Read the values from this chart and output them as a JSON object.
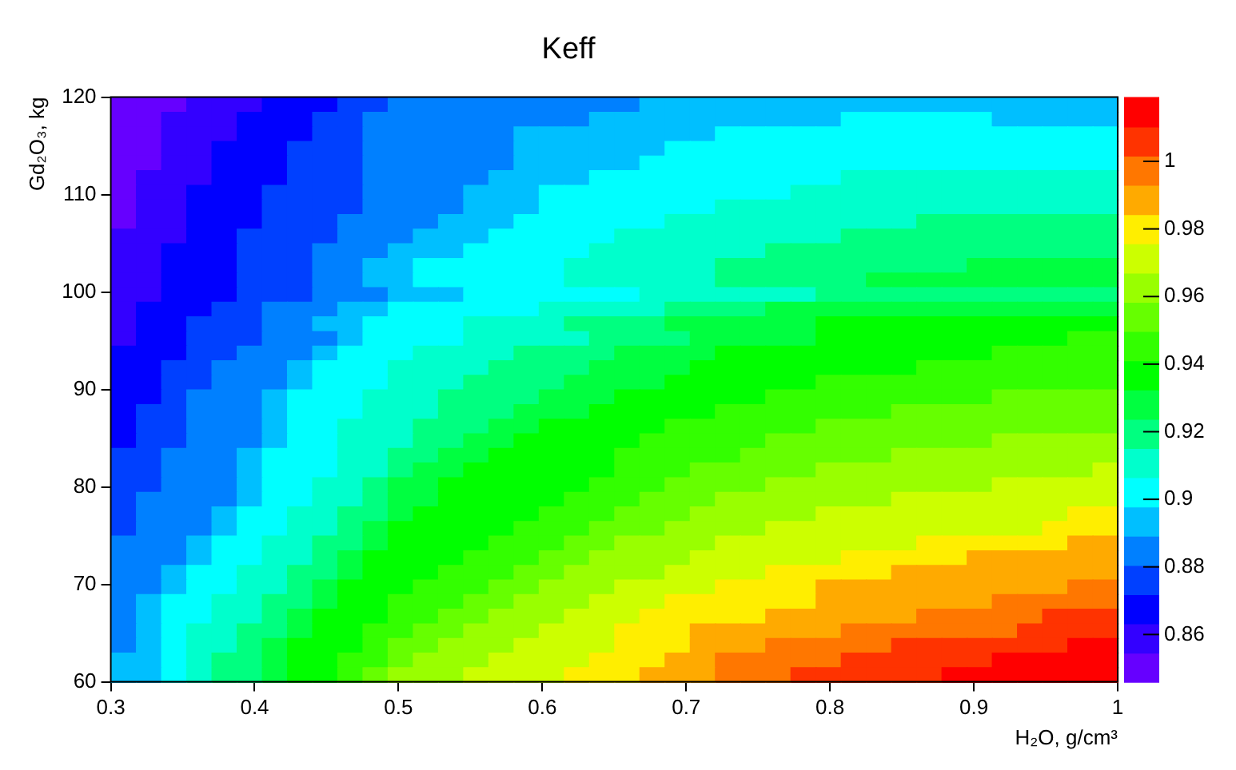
{
  "chart_data": {
    "type": "heatmap",
    "title": "Keff",
    "xlabel": "H₂O, g/cm³",
    "ylabel": "Gd₂O₃, kg",
    "xlim": [
      0.3,
      1
    ],
    "xticks": [
      0.3,
      0.4,
      0.5,
      0.6,
      0.7,
      0.8,
      0.9,
      1
    ],
    "ylim": [
      60,
      120
    ],
    "yticks": [
      60,
      70,
      80,
      90,
      100,
      110,
      120
    ],
    "clim": [
      0.846,
      1.019
    ],
    "cticks": [
      0.86,
      0.88,
      0.9,
      0.92,
      0.94,
      0.96,
      0.98,
      1
    ],
    "cells": [
      [
        0.85,
        0.85,
        0.85,
        0.859,
        0.859,
        0.859,
        0.868,
        0.868,
        0.868,
        0.876,
        0.876,
        0.885,
        0.885,
        0.885,
        0.885,
        0.885,
        0.885,
        0.885,
        0.885,
        0.885,
        0.885,
        0.893,
        0.893,
        0.893,
        0.893,
        0.893,
        0.893,
        0.893,
        0.893,
        0.893,
        0.893,
        0.893,
        0.893,
        0.893,
        0.893,
        0.893,
        0.893,
        0.893,
        0.893,
        0.893
      ],
      [
        0.85,
        0.85,
        0.859,
        0.859,
        0.859,
        0.868,
        0.868,
        0.868,
        0.876,
        0.876,
        0.885,
        0.885,
        0.885,
        0.885,
        0.885,
        0.885,
        0.885,
        0.885,
        0.885,
        0.893,
        0.893,
        0.893,
        0.893,
        0.893,
        0.893,
        0.893,
        0.893,
        0.893,
        0.893,
        0.902,
        0.902,
        0.902,
        0.902,
        0.902,
        0.902,
        0.893,
        0.893,
        0.893,
        0.893,
        0.893
      ],
      [
        0.85,
        0.85,
        0.859,
        0.859,
        0.859,
        0.868,
        0.868,
        0.868,
        0.876,
        0.876,
        0.885,
        0.885,
        0.885,
        0.885,
        0.885,
        0.885,
        0.893,
        0.893,
        0.893,
        0.893,
        0.893,
        0.893,
        0.893,
        0.893,
        0.902,
        0.902,
        0.902,
        0.902,
        0.902,
        0.902,
        0.902,
        0.902,
        0.902,
        0.902,
        0.902,
        0.902,
        0.902,
        0.902,
        0.902,
        0.902
      ],
      [
        0.85,
        0.85,
        0.859,
        0.859,
        0.868,
        0.868,
        0.868,
        0.876,
        0.876,
        0.876,
        0.885,
        0.885,
        0.885,
        0.885,
        0.885,
        0.885,
        0.893,
        0.893,
        0.893,
        0.893,
        0.893,
        0.893,
        0.902,
        0.902,
        0.902,
        0.902,
        0.902,
        0.902,
        0.902,
        0.902,
        0.902,
        0.902,
        0.902,
        0.902,
        0.902,
        0.902,
        0.902,
        0.902,
        0.902,
        0.902
      ],
      [
        0.85,
        0.85,
        0.859,
        0.859,
        0.868,
        0.868,
        0.868,
        0.876,
        0.876,
        0.876,
        0.885,
        0.885,
        0.885,
        0.885,
        0.885,
        0.885,
        0.893,
        0.893,
        0.893,
        0.893,
        0.893,
        0.902,
        0.902,
        0.902,
        0.902,
        0.902,
        0.902,
        0.902,
        0.902,
        0.902,
        0.902,
        0.902,
        0.902,
        0.902,
        0.902,
        0.902,
        0.902,
        0.902,
        0.902,
        0.902
      ],
      [
        0.85,
        0.859,
        0.859,
        0.859,
        0.868,
        0.868,
        0.868,
        0.876,
        0.876,
        0.876,
        0.885,
        0.885,
        0.885,
        0.885,
        0.885,
        0.893,
        0.893,
        0.893,
        0.893,
        0.902,
        0.902,
        0.902,
        0.902,
        0.902,
        0.902,
        0.902,
        0.902,
        0.902,
        0.902,
        0.911,
        0.911,
        0.911,
        0.911,
        0.911,
        0.911,
        0.911,
        0.911,
        0.911,
        0.911,
        0.911
      ],
      [
        0.85,
        0.859,
        0.859,
        0.868,
        0.868,
        0.868,
        0.876,
        0.876,
        0.876,
        0.876,
        0.885,
        0.885,
        0.885,
        0.885,
        0.893,
        0.893,
        0.893,
        0.902,
        0.902,
        0.902,
        0.902,
        0.902,
        0.902,
        0.902,
        0.902,
        0.902,
        0.902,
        0.911,
        0.911,
        0.911,
        0.911,
        0.911,
        0.911,
        0.911,
        0.911,
        0.911,
        0.911,
        0.911,
        0.911,
        0.911
      ],
      [
        0.85,
        0.859,
        0.859,
        0.868,
        0.868,
        0.868,
        0.876,
        0.876,
        0.876,
        0.876,
        0.885,
        0.885,
        0.885,
        0.885,
        0.893,
        0.893,
        0.893,
        0.902,
        0.902,
        0.902,
        0.902,
        0.902,
        0.902,
        0.902,
        0.911,
        0.911,
        0.911,
        0.911,
        0.911,
        0.911,
        0.911,
        0.911,
        0.911,
        0.911,
        0.911,
        0.911,
        0.911,
        0.911,
        0.911,
        0.911
      ],
      [
        0.85,
        0.859,
        0.859,
        0.868,
        0.868,
        0.868,
        0.876,
        0.876,
        0.876,
        0.885,
        0.885,
        0.885,
        0.885,
        0.893,
        0.893,
        0.893,
        0.902,
        0.902,
        0.902,
        0.902,
        0.902,
        0.902,
        0.911,
        0.911,
        0.911,
        0.911,
        0.911,
        0.911,
        0.911,
        0.911,
        0.911,
        0.911,
        0.919,
        0.919,
        0.919,
        0.919,
        0.919,
        0.919,
        0.919,
        0.919
      ],
      [
        0.859,
        0.859,
        0.859,
        0.868,
        0.868,
        0.876,
        0.876,
        0.876,
        0.876,
        0.885,
        0.885,
        0.885,
        0.893,
        0.893,
        0.893,
        0.902,
        0.902,
        0.902,
        0.902,
        0.902,
        0.911,
        0.911,
        0.911,
        0.911,
        0.911,
        0.911,
        0.911,
        0.911,
        0.911,
        0.919,
        0.919,
        0.919,
        0.919,
        0.919,
        0.919,
        0.919,
        0.919,
        0.919,
        0.919,
        0.919
      ],
      [
        0.859,
        0.859,
        0.868,
        0.868,
        0.868,
        0.876,
        0.876,
        0.876,
        0.885,
        0.885,
        0.885,
        0.893,
        0.893,
        0.893,
        0.902,
        0.902,
        0.902,
        0.902,
        0.902,
        0.911,
        0.911,
        0.911,
        0.911,
        0.911,
        0.911,
        0.911,
        0.919,
        0.919,
        0.919,
        0.919,
        0.919,
        0.919,
        0.919,
        0.919,
        0.919,
        0.919,
        0.919,
        0.919,
        0.919,
        0.919
      ],
      [
        0.859,
        0.859,
        0.868,
        0.868,
        0.868,
        0.876,
        0.876,
        0.876,
        0.885,
        0.885,
        0.893,
        0.893,
        0.902,
        0.902,
        0.902,
        0.902,
        0.902,
        0.902,
        0.911,
        0.911,
        0.911,
        0.911,
        0.911,
        0.911,
        0.919,
        0.919,
        0.919,
        0.919,
        0.919,
        0.919,
        0.919,
        0.919,
        0.919,
        0.919,
        0.928,
        0.928,
        0.928,
        0.928,
        0.928,
        0.928
      ],
      [
        0.859,
        0.859,
        0.868,
        0.868,
        0.868,
        0.876,
        0.876,
        0.876,
        0.885,
        0.885,
        0.893,
        0.893,
        0.902,
        0.902,
        0.902,
        0.902,
        0.902,
        0.902,
        0.911,
        0.911,
        0.911,
        0.911,
        0.911,
        0.911,
        0.919,
        0.919,
        0.919,
        0.919,
        0.919,
        0.919,
        0.928,
        0.928,
        0.928,
        0.928,
        0.928,
        0.928,
        0.928,
        0.928,
        0.928,
        0.928
      ],
      [
        0.859,
        0.859,
        0.868,
        0.868,
        0.868,
        0.876,
        0.876,
        0.876,
        0.885,
        0.885,
        0.885,
        0.893,
        0.893,
        0.893,
        0.902,
        0.902,
        0.902,
        0.902,
        0.902,
        0.902,
        0.902,
        0.911,
        0.911,
        0.911,
        0.911,
        0.911,
        0.911,
        0.911,
        0.919,
        0.919,
        0.919,
        0.919,
        0.919,
        0.919,
        0.919,
        0.919,
        0.919,
        0.919,
        0.919,
        0.919
      ],
      [
        0.859,
        0.868,
        0.868,
        0.868,
        0.876,
        0.876,
        0.885,
        0.885,
        0.885,
        0.893,
        0.893,
        0.902,
        0.902,
        0.902,
        0.902,
        0.902,
        0.902,
        0.911,
        0.911,
        0.911,
        0.911,
        0.911,
        0.919,
        0.919,
        0.919,
        0.919,
        0.928,
        0.928,
        0.928,
        0.928,
        0.928,
        0.928,
        0.928,
        0.928,
        0.928,
        0.928,
        0.928,
        0.928,
        0.928,
        0.928
      ],
      [
        0.859,
        0.868,
        0.868,
        0.876,
        0.876,
        0.876,
        0.885,
        0.885,
        0.893,
        0.893,
        0.902,
        0.902,
        0.902,
        0.902,
        0.911,
        0.911,
        0.911,
        0.911,
        0.919,
        0.919,
        0.919,
        0.919,
        0.928,
        0.928,
        0.928,
        0.928,
        0.928,
        0.928,
        0.937,
        0.937,
        0.937,
        0.937,
        0.937,
        0.937,
        0.937,
        0.937,
        0.937,
        0.937,
        0.937,
        0.937
      ],
      [
        0.859,
        0.868,
        0.868,
        0.876,
        0.876,
        0.876,
        0.885,
        0.885,
        0.885,
        0.893,
        0.902,
        0.902,
        0.902,
        0.902,
        0.911,
        0.911,
        0.911,
        0.911,
        0.911,
        0.919,
        0.919,
        0.919,
        0.919,
        0.928,
        0.928,
        0.928,
        0.928,
        0.928,
        0.937,
        0.937,
        0.937,
        0.937,
        0.937,
        0.937,
        0.937,
        0.937,
        0.937,
        0.937,
        0.945,
        0.945
      ],
      [
        0.868,
        0.868,
        0.868,
        0.876,
        0.876,
        0.885,
        0.885,
        0.885,
        0.893,
        0.902,
        0.902,
        0.902,
        0.911,
        0.911,
        0.911,
        0.911,
        0.919,
        0.919,
        0.919,
        0.919,
        0.928,
        0.928,
        0.928,
        0.928,
        0.937,
        0.937,
        0.937,
        0.937,
        0.937,
        0.937,
        0.937,
        0.937,
        0.937,
        0.937,
        0.937,
        0.945,
        0.945,
        0.945,
        0.945,
        0.945
      ],
      [
        0.868,
        0.868,
        0.876,
        0.876,
        0.885,
        0.885,
        0.885,
        0.893,
        0.902,
        0.902,
        0.902,
        0.911,
        0.911,
        0.911,
        0.911,
        0.919,
        0.919,
        0.919,
        0.919,
        0.928,
        0.928,
        0.928,
        0.928,
        0.937,
        0.937,
        0.937,
        0.937,
        0.937,
        0.937,
        0.937,
        0.937,
        0.937,
        0.945,
        0.945,
        0.945,
        0.945,
        0.945,
        0.945,
        0.945,
        0.945
      ],
      [
        0.868,
        0.868,
        0.876,
        0.876,
        0.885,
        0.885,
        0.885,
        0.893,
        0.902,
        0.902,
        0.902,
        0.911,
        0.911,
        0.911,
        0.919,
        0.919,
        0.919,
        0.919,
        0.928,
        0.928,
        0.928,
        0.928,
        0.937,
        0.937,
        0.937,
        0.937,
        0.937,
        0.937,
        0.945,
        0.945,
        0.945,
        0.945,
        0.945,
        0.945,
        0.945,
        0.945,
        0.945,
        0.945,
        0.945,
        0.945
      ],
      [
        0.868,
        0.868,
        0.876,
        0.885,
        0.885,
        0.885,
        0.893,
        0.902,
        0.902,
        0.902,
        0.911,
        0.911,
        0.911,
        0.919,
        0.919,
        0.919,
        0.919,
        0.928,
        0.928,
        0.928,
        0.937,
        0.937,
        0.937,
        0.937,
        0.937,
        0.937,
        0.945,
        0.945,
        0.945,
        0.945,
        0.945,
        0.945,
        0.945,
        0.945,
        0.945,
        0.954,
        0.954,
        0.954,
        0.954,
        0.954
      ],
      [
        0.868,
        0.876,
        0.876,
        0.885,
        0.885,
        0.885,
        0.893,
        0.902,
        0.902,
        0.902,
        0.911,
        0.911,
        0.911,
        0.919,
        0.919,
        0.919,
        0.928,
        0.928,
        0.928,
        0.937,
        0.937,
        0.937,
        0.937,
        0.937,
        0.945,
        0.945,
        0.945,
        0.945,
        0.945,
        0.945,
        0.945,
        0.954,
        0.954,
        0.954,
        0.954,
        0.954,
        0.954,
        0.954,
        0.954,
        0.954
      ],
      [
        0.868,
        0.876,
        0.876,
        0.885,
        0.885,
        0.885,
        0.893,
        0.902,
        0.902,
        0.911,
        0.911,
        0.911,
        0.919,
        0.919,
        0.919,
        0.928,
        0.928,
        0.937,
        0.937,
        0.937,
        0.937,
        0.937,
        0.945,
        0.945,
        0.945,
        0.945,
        0.945,
        0.945,
        0.954,
        0.954,
        0.954,
        0.954,
        0.954,
        0.954,
        0.954,
        0.954,
        0.954,
        0.954,
        0.954,
        0.954
      ],
      [
        0.868,
        0.876,
        0.876,
        0.885,
        0.885,
        0.885,
        0.893,
        0.902,
        0.902,
        0.911,
        0.911,
        0.911,
        0.919,
        0.919,
        0.928,
        0.928,
        0.937,
        0.937,
        0.937,
        0.937,
        0.937,
        0.945,
        0.945,
        0.945,
        0.945,
        0.945,
        0.954,
        0.954,
        0.954,
        0.954,
        0.954,
        0.954,
        0.954,
        0.954,
        0.954,
        0.962,
        0.962,
        0.962,
        0.962,
        0.962
      ],
      [
        0.876,
        0.876,
        0.885,
        0.885,
        0.885,
        0.893,
        0.902,
        0.902,
        0.902,
        0.911,
        0.911,
        0.919,
        0.919,
        0.928,
        0.928,
        0.937,
        0.937,
        0.937,
        0.937,
        0.937,
        0.945,
        0.945,
        0.945,
        0.945,
        0.945,
        0.954,
        0.954,
        0.954,
        0.954,
        0.954,
        0.954,
        0.962,
        0.962,
        0.962,
        0.962,
        0.962,
        0.962,
        0.962,
        0.962,
        0.962
      ],
      [
        0.876,
        0.876,
        0.885,
        0.885,
        0.885,
        0.893,
        0.902,
        0.902,
        0.902,
        0.911,
        0.911,
        0.919,
        0.928,
        0.928,
        0.937,
        0.937,
        0.937,
        0.937,
        0.937,
        0.937,
        0.945,
        0.945,
        0.945,
        0.954,
        0.954,
        0.954,
        0.954,
        0.954,
        0.962,
        0.962,
        0.962,
        0.962,
        0.962,
        0.962,
        0.962,
        0.962,
        0.962,
        0.962,
        0.962,
        0.971
      ],
      [
        0.876,
        0.876,
        0.885,
        0.885,
        0.885,
        0.893,
        0.902,
        0.902,
        0.911,
        0.911,
        0.919,
        0.928,
        0.928,
        0.937,
        0.937,
        0.937,
        0.937,
        0.937,
        0.937,
        0.945,
        0.945,
        0.945,
        0.954,
        0.954,
        0.954,
        0.954,
        0.962,
        0.962,
        0.962,
        0.962,
        0.962,
        0.962,
        0.962,
        0.962,
        0.962,
        0.971,
        0.971,
        0.971,
        0.971,
        0.971
      ],
      [
        0.876,
        0.885,
        0.885,
        0.885,
        0.885,
        0.893,
        0.902,
        0.902,
        0.911,
        0.911,
        0.919,
        0.928,
        0.928,
        0.937,
        0.937,
        0.937,
        0.937,
        0.937,
        0.945,
        0.945,
        0.945,
        0.954,
        0.954,
        0.954,
        0.962,
        0.962,
        0.962,
        0.962,
        0.962,
        0.962,
        0.962,
        0.971,
        0.971,
        0.971,
        0.971,
        0.971,
        0.971,
        0.971,
        0.971,
        0.971
      ],
      [
        0.876,
        0.885,
        0.885,
        0.885,
        0.893,
        0.902,
        0.902,
        0.911,
        0.911,
        0.919,
        0.919,
        0.928,
        0.937,
        0.937,
        0.937,
        0.937,
        0.937,
        0.945,
        0.945,
        0.945,
        0.954,
        0.954,
        0.954,
        0.962,
        0.962,
        0.962,
        0.962,
        0.962,
        0.971,
        0.971,
        0.971,
        0.971,
        0.971,
        0.971,
        0.971,
        0.971,
        0.971,
        0.971,
        0.98,
        0.98
      ],
      [
        0.876,
        0.885,
        0.885,
        0.885,
        0.893,
        0.902,
        0.902,
        0.911,
        0.911,
        0.919,
        0.928,
        0.937,
        0.937,
        0.937,
        0.937,
        0.937,
        0.945,
        0.945,
        0.945,
        0.954,
        0.954,
        0.954,
        0.962,
        0.962,
        0.962,
        0.962,
        0.971,
        0.971,
        0.971,
        0.971,
        0.971,
        0.971,
        0.971,
        0.971,
        0.971,
        0.971,
        0.971,
        0.98,
        0.98,
        0.98
      ],
      [
        0.885,
        0.885,
        0.885,
        0.893,
        0.902,
        0.902,
        0.911,
        0.911,
        0.919,
        0.919,
        0.928,
        0.937,
        0.937,
        0.937,
        0.937,
        0.945,
        0.945,
        0.945,
        0.954,
        0.954,
        0.962,
        0.962,
        0.962,
        0.962,
        0.971,
        0.971,
        0.971,
        0.971,
        0.971,
        0.971,
        0.971,
        0.971,
        0.98,
        0.98,
        0.98,
        0.98,
        0.98,
        0.98,
        0.988,
        0.988
      ],
      [
        0.885,
        0.885,
        0.885,
        0.893,
        0.902,
        0.902,
        0.911,
        0.911,
        0.919,
        0.928,
        0.937,
        0.937,
        0.937,
        0.937,
        0.945,
        0.945,
        0.945,
        0.954,
        0.954,
        0.962,
        0.962,
        0.962,
        0.962,
        0.971,
        0.971,
        0.971,
        0.971,
        0.971,
        0.971,
        0.98,
        0.98,
        0.98,
        0.98,
        0.98,
        0.988,
        0.988,
        0.988,
        0.988,
        0.988,
        0.988
      ],
      [
        0.885,
        0.885,
        0.893,
        0.902,
        0.902,
        0.911,
        0.911,
        0.919,
        0.919,
        0.928,
        0.937,
        0.937,
        0.937,
        0.945,
        0.945,
        0.945,
        0.954,
        0.954,
        0.962,
        0.962,
        0.962,
        0.962,
        0.971,
        0.971,
        0.971,
        0.971,
        0.98,
        0.98,
        0.98,
        0.98,
        0.98,
        0.988,
        0.988,
        0.988,
        0.988,
        0.988,
        0.988,
        0.988,
        0.988,
        0.988
      ],
      [
        0.885,
        0.885,
        0.893,
        0.902,
        0.902,
        0.911,
        0.911,
        0.919,
        0.928,
        0.937,
        0.937,
        0.937,
        0.945,
        0.945,
        0.945,
        0.954,
        0.954,
        0.962,
        0.962,
        0.962,
        0.971,
        0.971,
        0.971,
        0.971,
        0.98,
        0.98,
        0.98,
        0.98,
        0.988,
        0.988,
        0.988,
        0.988,
        0.988,
        0.988,
        0.988,
        0.988,
        0.988,
        0.988,
        0.997,
        0.997
      ],
      [
        0.885,
        0.893,
        0.902,
        0.902,
        0.911,
        0.911,
        0.919,
        0.919,
        0.928,
        0.937,
        0.937,
        0.945,
        0.945,
        0.945,
        0.954,
        0.954,
        0.962,
        0.962,
        0.962,
        0.971,
        0.971,
        0.971,
        0.98,
        0.98,
        0.98,
        0.98,
        0.98,
        0.98,
        0.988,
        0.988,
        0.988,
        0.988,
        0.988,
        0.988,
        0.988,
        0.997,
        0.997,
        0.997,
        0.997,
        0.997
      ],
      [
        0.885,
        0.893,
        0.902,
        0.902,
        0.911,
        0.911,
        0.919,
        0.928,
        0.937,
        0.937,
        0.937,
        0.945,
        0.945,
        0.954,
        0.954,
        0.962,
        0.962,
        0.962,
        0.971,
        0.971,
        0.971,
        0.98,
        0.98,
        0.98,
        0.98,
        0.98,
        0.988,
        0.988,
        0.988,
        0.988,
        0.988,
        0.988,
        0.997,
        0.997,
        0.997,
        0.997,
        0.997,
        1.006,
        1.006,
        1.006
      ],
      [
        0.885,
        0.893,
        0.902,
        0.911,
        0.911,
        0.919,
        0.919,
        0.928,
        0.937,
        0.937,
        0.945,
        0.945,
        0.954,
        0.954,
        0.962,
        0.962,
        0.962,
        0.971,
        0.971,
        0.971,
        0.98,
        0.98,
        0.98,
        0.988,
        0.988,
        0.988,
        0.988,
        0.988,
        0.988,
        0.997,
        0.997,
        0.997,
        0.997,
        0.997,
        0.997,
        0.997,
        1.006,
        1.006,
        1.006,
        1.006
      ],
      [
        0.885,
        0.893,
        0.902,
        0.911,
        0.911,
        0.919,
        0.928,
        0.937,
        0.937,
        0.937,
        0.945,
        0.954,
        0.954,
        0.962,
        0.962,
        0.962,
        0.971,
        0.971,
        0.971,
        0.971,
        0.98,
        0.98,
        0.98,
        0.988,
        0.988,
        0.988,
        0.997,
        0.997,
        0.997,
        0.997,
        0.997,
        1.006,
        1.006,
        1.006,
        1.006,
        1.006,
        1.006,
        1.006,
        1.014,
        1.014
      ],
      [
        0.893,
        0.893,
        0.902,
        0.911,
        0.919,
        0.919,
        0.928,
        0.937,
        0.937,
        0.945,
        0.945,
        0.954,
        0.962,
        0.962,
        0.962,
        0.971,
        0.971,
        0.971,
        0.971,
        0.98,
        0.98,
        0.98,
        0.988,
        0.988,
        0.997,
        0.997,
        0.997,
        0.997,
        0.997,
        1.006,
        1.006,
        1.006,
        1.006,
        1.006,
        1.006,
        1.014,
        1.014,
        1.014,
        1.014,
        1.014
      ],
      [
        0.893,
        0.893,
        0.902,
        0.911,
        0.919,
        0.919,
        0.928,
        0.937,
        0.937,
        0.945,
        0.954,
        0.962,
        0.962,
        0.962,
        0.971,
        0.971,
        0.971,
        0.971,
        0.98,
        0.98,
        0.98,
        0.988,
        0.988,
        0.988,
        0.997,
        0.997,
        0.997,
        1.006,
        1.006,
        1.006,
        1.006,
        1.006,
        1.006,
        1.014,
        1.014,
        1.014,
        1.014,
        1.014,
        1.014,
        1.014
      ]
    ]
  }
}
